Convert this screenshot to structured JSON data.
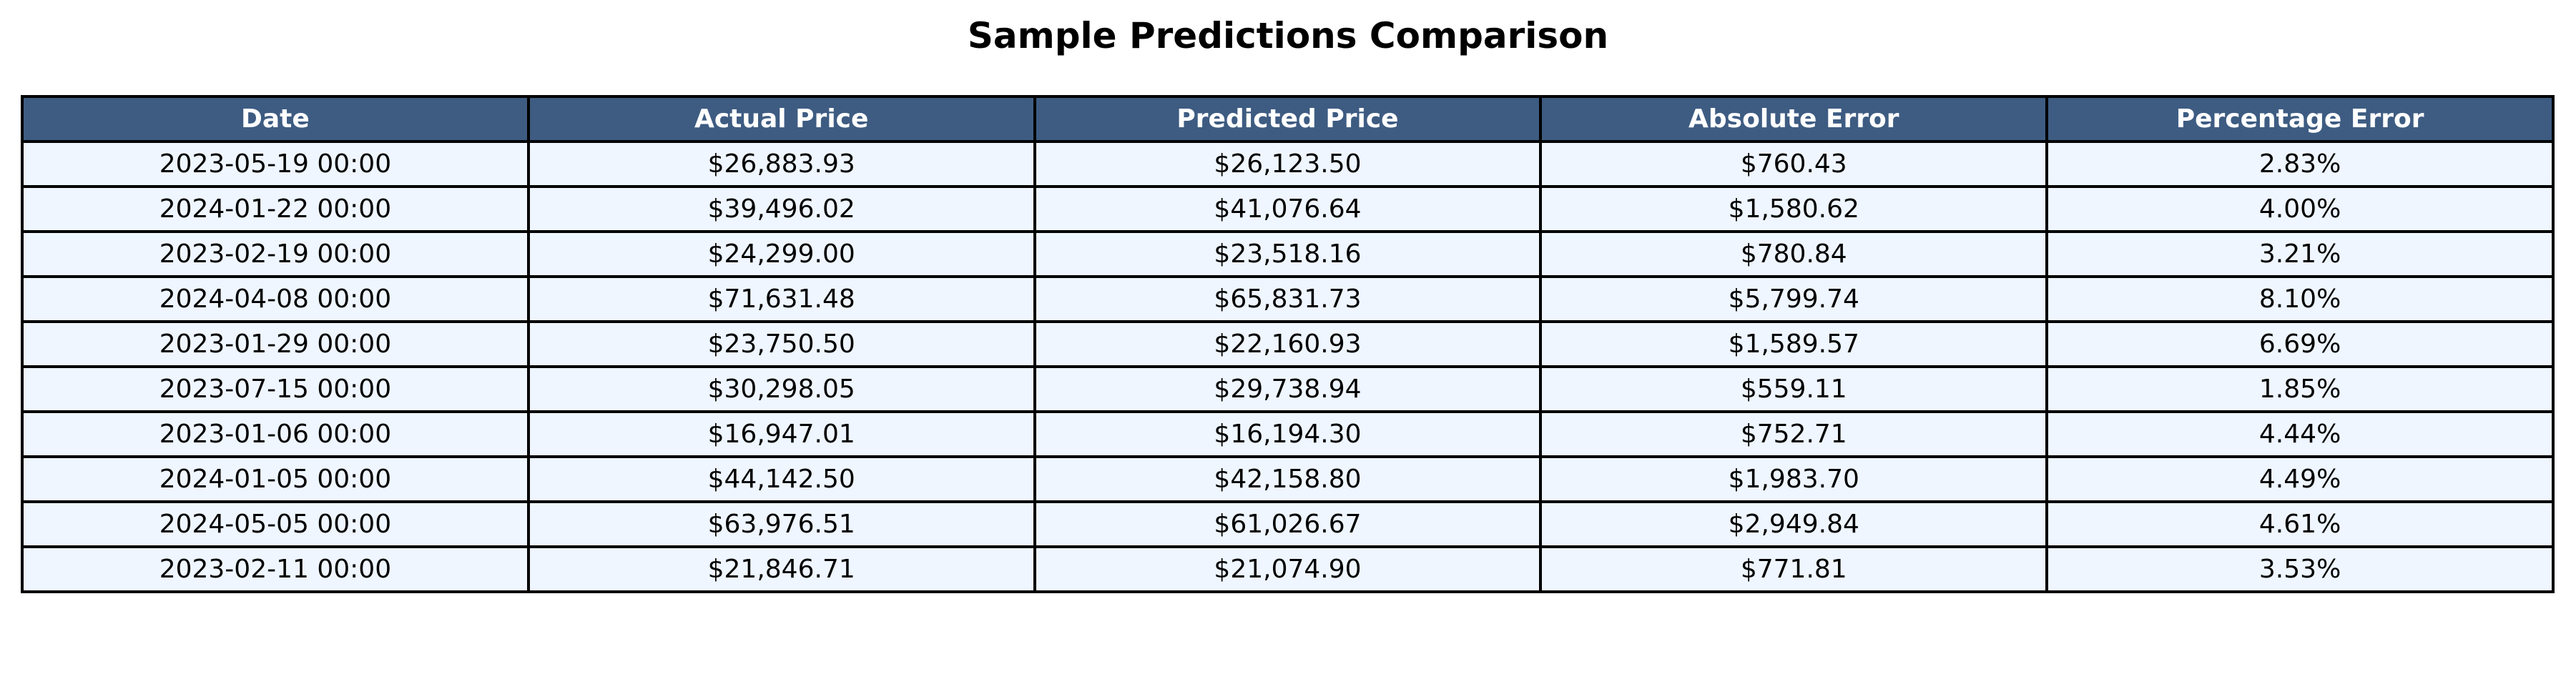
{
  "chart_data": {
    "type": "table",
    "title": "Sample Predictions Comparison",
    "columns": [
      "Date",
      "Actual Price",
      "Predicted Price",
      "Absolute Error",
      "Percentage Error"
    ],
    "rows": [
      [
        "2023-05-19 00:00",
        "$26,883.93",
        "$26,123.50",
        "$760.43",
        "2.83%"
      ],
      [
        "2024-01-22 00:00",
        "$39,496.02",
        "$41,076.64",
        "$1,580.62",
        "4.00%"
      ],
      [
        "2023-02-19 00:00",
        "$24,299.00",
        "$23,518.16",
        "$780.84",
        "3.21%"
      ],
      [
        "2024-04-08 00:00",
        "$71,631.48",
        "$65,831.73",
        "$5,799.74",
        "8.10%"
      ],
      [
        "2023-01-29 00:00",
        "$23,750.50",
        "$22,160.93",
        "$1,589.57",
        "6.69%"
      ],
      [
        "2023-07-15 00:00",
        "$30,298.05",
        "$29,738.94",
        "$559.11",
        "1.85%"
      ],
      [
        "2023-01-06 00:00",
        "$16,947.01",
        "$16,194.30",
        "$752.71",
        "4.44%"
      ],
      [
        "2024-01-05 00:00",
        "$44,142.50",
        "$42,158.80",
        "$1,983.70",
        "4.49%"
      ],
      [
        "2024-05-05 00:00",
        "$63,976.51",
        "$61,026.67",
        "$2,949.84",
        "4.61%"
      ],
      [
        "2023-02-11 00:00",
        "$21,846.71",
        "$21,074.90",
        "$771.81",
        "3.53%"
      ]
    ],
    "colors": {
      "header_background": "#3e5c82",
      "header_text": "#ffffff",
      "row_background": "#eff6ff",
      "border": "#000000"
    }
  }
}
